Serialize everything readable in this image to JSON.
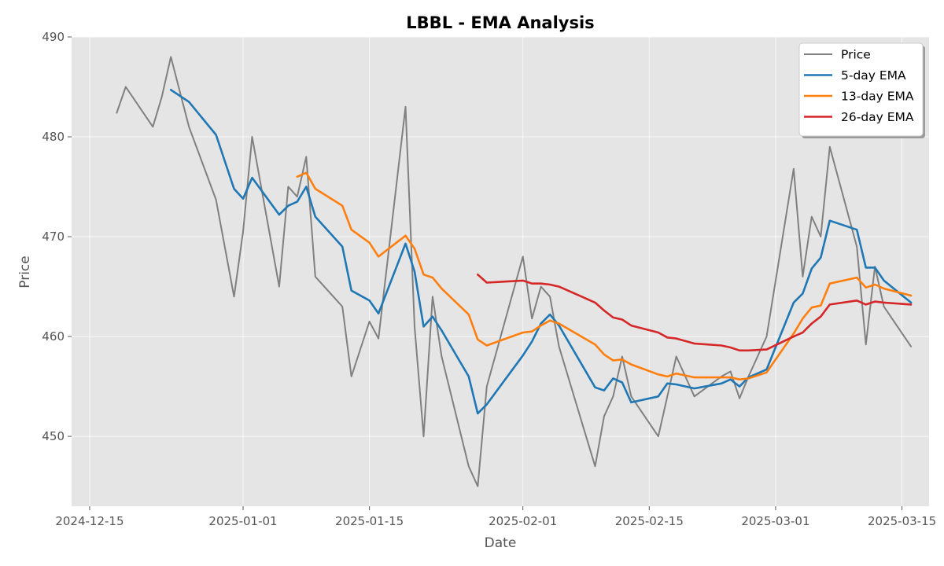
{
  "chart_data": {
    "type": "line",
    "title": "LBBL - EMA Analysis",
    "xlabel": "Date",
    "ylabel": "Price",
    "xlim": [
      "2024-12-13",
      "2025-03-18"
    ],
    "ylim": [
      443,
      490
    ],
    "grid": true,
    "legend_position": "top-right",
    "x_ticks": [
      "2024-12-15",
      "2025-01-01",
      "2025-01-15",
      "2025-02-01",
      "2025-02-15",
      "2025-03-01",
      "2025-03-15"
    ],
    "y_ticks": [
      450,
      460,
      470,
      480,
      490
    ],
    "x": [
      "2024-12-18",
      "2024-12-19",
      "2024-12-22",
      "2024-12-23",
      "2024-12-24",
      "2024-12-26",
      "2024-12-29",
      "2024-12-31",
      "2025-01-01",
      "2025-01-02",
      "2025-01-05",
      "2025-01-06",
      "2025-01-07",
      "2025-01-08",
      "2025-01-09",
      "2025-01-12",
      "2025-01-13",
      "2025-01-15",
      "2025-01-16",
      "2025-01-19",
      "2025-01-20",
      "2025-01-21",
      "2025-01-22",
      "2025-01-23",
      "2025-01-26",
      "2025-01-27",
      "2025-01-28",
      "2025-02-01",
      "2025-02-02",
      "2025-02-03",
      "2025-02-04",
      "2025-02-05",
      "2025-02-09",
      "2025-02-10",
      "2025-02-11",
      "2025-02-12",
      "2025-02-13",
      "2025-02-16",
      "2025-02-17",
      "2025-02-18",
      "2025-02-20",
      "2025-02-23",
      "2025-02-24",
      "2025-02-25",
      "2025-02-26",
      "2025-02-28",
      "2025-03-03",
      "2025-03-04",
      "2025-03-05",
      "2025-03-06",
      "2025-03-07",
      "2025-03-10",
      "2025-03-11",
      "2025-03-12",
      "2025-03-13",
      "2025-03-16"
    ],
    "series": [
      {
        "name": "Price",
        "color": "#808080",
        "values": [
          482.4,
          485.0,
          481.0,
          484.0,
          488.0,
          481.0,
          473.7,
          464.0,
          470.5,
          480.0,
          465.0,
          475.0,
          474.0,
          478.0,
          466.0,
          463.0,
          456.0,
          461.5,
          459.8,
          483.0,
          461.0,
          450.0,
          464.0,
          458.0,
          447.0,
          445.0,
          455.0,
          468.0,
          461.8,
          465.0,
          464.0,
          459.0,
          447.0,
          452.0,
          454.0,
          458.0,
          454.0,
          450.0,
          454.0,
          458.0,
          454.0,
          456.0,
          456.5,
          453.8,
          456.0,
          460.0,
          476.8,
          466.0,
          472.0,
          470.0,
          479.0,
          469.0,
          459.2,
          467.0,
          463.0,
          459.0
        ]
      },
      {
        "name": "5-day EMA",
        "color": "#1f77b4",
        "values": [
          null,
          null,
          null,
          null,
          484.7,
          483.5,
          480.2,
          474.8,
          473.8,
          475.9,
          472.2,
          473.1,
          473.5,
          475.0,
          472.0,
          469.0,
          464.6,
          463.6,
          462.3,
          469.3,
          466.5,
          461.0,
          462.0,
          460.6,
          456.0,
          452.3,
          453.2,
          458.1,
          459.5,
          461.3,
          462.2,
          461.1,
          454.9,
          454.6,
          455.8,
          455.4,
          453.4,
          454.0,
          455.3,
          455.2,
          454.8,
          455.3,
          455.7,
          455.0,
          455.9,
          456.7,
          463.4,
          464.3,
          466.8,
          467.9,
          471.6,
          470.7,
          466.9,
          466.9,
          465.6,
          463.4
        ]
      },
      {
        "name": "13-day EMA",
        "color": "#ff7f0e",
        "values": [
          null,
          null,
          null,
          null,
          null,
          null,
          null,
          null,
          null,
          null,
          null,
          null,
          476.0,
          476.4,
          474.8,
          473.1,
          470.7,
          469.4,
          468.0,
          470.1,
          468.8,
          466.2,
          465.9,
          464.8,
          462.2,
          459.7,
          459.1,
          460.4,
          460.5,
          461.1,
          461.6,
          461.3,
          459.2,
          458.2,
          457.6,
          457.7,
          457.2,
          456.2,
          456.0,
          456.3,
          455.9,
          455.9,
          455.9,
          455.7,
          455.8,
          456.4,
          460.3,
          461.8,
          462.9,
          463.1,
          465.3,
          465.9,
          464.9,
          465.2,
          464.8,
          464.1
        ]
      },
      {
        "name": "26-day EMA",
        "color": "#d62728",
        "values": [
          null,
          null,
          null,
          null,
          null,
          null,
          null,
          null,
          null,
          null,
          null,
          null,
          null,
          null,
          null,
          null,
          null,
          null,
          null,
          null,
          null,
          null,
          null,
          null,
          null,
          466.2,
          465.4,
          465.6,
          465.3,
          465.3,
          465.2,
          465.0,
          463.4,
          462.6,
          461.9,
          461.7,
          461.1,
          460.4,
          459.9,
          459.8,
          459.3,
          459.1,
          458.9,
          458.6,
          458.6,
          458.7,
          460.0,
          460.4,
          461.3,
          462.0,
          463.2,
          463.6,
          463.2,
          463.5,
          463.4,
          463.2
        ]
      }
    ]
  }
}
